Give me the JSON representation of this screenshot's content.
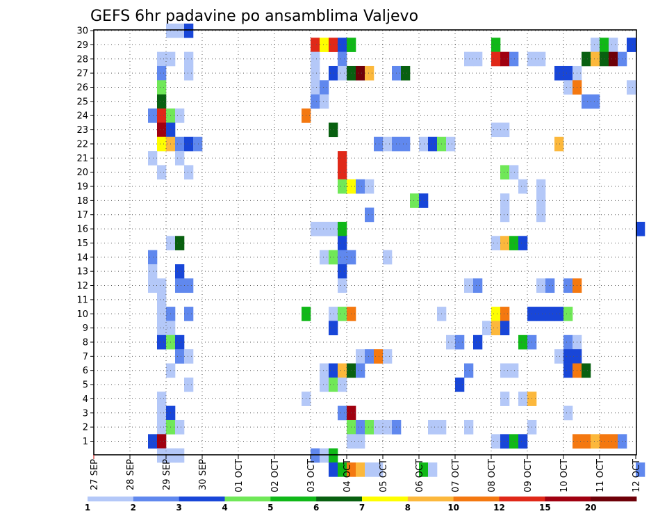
{
  "chart_data": {
    "type": "heatmap",
    "title": "GEFS 6hr padavine po ansamblima Valjevo",
    "xlabel": "",
    "ylabel": "",
    "x_tick_labels": [
      "27 SEP",
      "28 SEP",
      "29 SEP",
      "30 SEP",
      "01 OCT",
      "02 OCT",
      "03 OCT",
      "04 OCT",
      "05 OCT",
      "06 OCT",
      "07 OCT",
      "08 OCT",
      "09 OCT",
      "10 OCT",
      "11 OCT",
      "12 OCT"
    ],
    "y_tick_labels": [
      "1",
      "2",
      "3",
      "4",
      "5",
      "6",
      "7",
      "8",
      "9",
      "10",
      "11",
      "12",
      "13",
      "14",
      "15",
      "16",
      "17",
      "18",
      "19",
      "20",
      "21",
      "22",
      "23",
      "24",
      "25",
      "26",
      "27",
      "28",
      "29",
      "30"
    ],
    "grid": true,
    "colorbar": {
      "labels": [
        "1",
        "2",
        "3",
        "4",
        "5",
        "6",
        "7",
        "8",
        "10",
        "12",
        "15",
        "20"
      ],
      "colors": [
        "#b4c8f8",
        "#6088ee",
        "#1846d8",
        "#70e858",
        "#10b818",
        "#086010",
        "#fefe00",
        "#fcb83c",
        "#f47810",
        "#e02818",
        "#a00010",
        "#6e0008"
      ]
    },
    "ensemble_cells": [
      {
        "m": 30,
        "c": [
          [
            8,
            "#b4c8f8"
          ],
          [
            9,
            "#b4c8f8"
          ],
          [
            10,
            "#1846d8"
          ]
        ]
      },
      {
        "m": 29,
        "c": [
          [
            24,
            "#e02818"
          ],
          [
            25,
            "#fefe00"
          ],
          [
            26,
            "#e02818"
          ],
          [
            27,
            "#1846d8"
          ],
          [
            28,
            "#10b818"
          ],
          [
            44,
            "#10b818"
          ],
          [
            55,
            "#b4c8f8"
          ],
          [
            56,
            "#10b818"
          ],
          [
            57,
            "#b4c8f8"
          ],
          [
            59,
            "#1846d8"
          ]
        ]
      },
      {
        "m": 28,
        "c": [
          [
            7,
            "#b4c8f8"
          ],
          [
            8,
            "#b4c8f8"
          ],
          [
            10,
            "#b4c8f8"
          ],
          [
            24,
            "#b4c8f8"
          ],
          [
            27,
            "#6088ee"
          ],
          [
            41,
            "#b4c8f8"
          ],
          [
            42,
            "#b4c8f8"
          ],
          [
            44,
            "#e02818"
          ],
          [
            45,
            "#a00010"
          ],
          [
            46,
            "#6088ee"
          ],
          [
            48,
            "#b4c8f8"
          ],
          [
            49,
            "#b4c8f8"
          ],
          [
            54,
            "#086010"
          ],
          [
            55,
            "#fcb83c"
          ],
          [
            56,
            "#086010"
          ],
          [
            57,
            "#6e0008"
          ],
          [
            58,
            "#6088ee"
          ]
        ]
      },
      {
        "m": 27,
        "c": [
          [
            7,
            "#6088ee"
          ],
          [
            10,
            "#b4c8f8"
          ],
          [
            24,
            "#b4c8f8"
          ],
          [
            26,
            "#1846d8"
          ],
          [
            27,
            "#b4c8f8"
          ],
          [
            28,
            "#086010"
          ],
          [
            29,
            "#6e0008"
          ],
          [
            30,
            "#fcb83c"
          ],
          [
            33,
            "#6088ee"
          ],
          [
            34,
            "#086010"
          ],
          [
            51,
            "#1846d8"
          ],
          [
            52,
            "#1846d8"
          ],
          [
            53,
            "#b4c8f8"
          ]
        ]
      },
      {
        "m": 26,
        "c": [
          [
            7,
            "#70e858"
          ],
          [
            24,
            "#b4c8f8"
          ],
          [
            25,
            "#6088ee"
          ],
          [
            52,
            "#b4c8f8"
          ],
          [
            53,
            "#f47810"
          ],
          [
            59,
            "#b4c8f8"
          ]
        ]
      },
      {
        "m": 25,
        "c": [
          [
            7,
            "#086010"
          ],
          [
            24,
            "#6088ee"
          ],
          [
            25,
            "#b4c8f8"
          ],
          [
            54,
            "#6088ee"
          ],
          [
            55,
            "#6088ee"
          ]
        ]
      },
      {
        "m": 24,
        "c": [
          [
            6,
            "#6088ee"
          ],
          [
            7,
            "#e02818"
          ],
          [
            8,
            "#70e858"
          ],
          [
            9,
            "#b4c8f8"
          ],
          [
            23,
            "#f47810"
          ]
        ]
      },
      {
        "m": 23,
        "c": [
          [
            7,
            "#a00010"
          ],
          [
            8,
            "#1846d8"
          ],
          [
            26,
            "#086010"
          ],
          [
            44,
            "#b4c8f8"
          ],
          [
            45,
            "#b4c8f8"
          ]
        ]
      },
      {
        "m": 22,
        "c": [
          [
            7,
            "#fefe00"
          ],
          [
            8,
            "#fcb83c"
          ],
          [
            9,
            "#6088ee"
          ],
          [
            10,
            "#1846d8"
          ],
          [
            11,
            "#6088ee"
          ],
          [
            31,
            "#6088ee"
          ],
          [
            32,
            "#b4c8f8"
          ],
          [
            33,
            "#6088ee"
          ],
          [
            34,
            "#6088ee"
          ],
          [
            36,
            "#b4c8f8"
          ],
          [
            37,
            "#1846d8"
          ],
          [
            38,
            "#70e858"
          ],
          [
            39,
            "#b4c8f8"
          ],
          [
            51,
            "#fcb83c"
          ]
        ]
      },
      {
        "m": 21,
        "c": [
          [
            6,
            "#b4c8f8"
          ],
          [
            9,
            "#b4c8f8"
          ],
          [
            27,
            "#e02818"
          ]
        ]
      },
      {
        "m": 20,
        "c": [
          [
            7,
            "#b4c8f8"
          ],
          [
            10,
            "#b4c8f8"
          ],
          [
            27,
            "#e02818"
          ],
          [
            45,
            "#70e858"
          ],
          [
            46,
            "#b4c8f8"
          ]
        ]
      },
      {
        "m": 19,
        "c": [
          [
            27,
            "#70e858"
          ],
          [
            28,
            "#fefe00"
          ],
          [
            29,
            "#6088ee"
          ],
          [
            30,
            "#b4c8f8"
          ],
          [
            47,
            "#b4c8f8"
          ],
          [
            49,
            "#b4c8f8"
          ]
        ]
      },
      {
        "m": 18,
        "c": [
          [
            35,
            "#70e858"
          ],
          [
            36,
            "#1846d8"
          ],
          [
            45,
            "#b4c8f8"
          ],
          [
            49,
            "#b4c8f8"
          ]
        ]
      },
      {
        "m": 17,
        "c": [
          [
            30,
            "#6088ee"
          ],
          [
            45,
            "#b4c8f8"
          ],
          [
            49,
            "#b4c8f8"
          ]
        ]
      },
      {
        "m": 16,
        "c": [
          [
            24,
            "#b4c8f8"
          ],
          [
            25,
            "#b4c8f8"
          ],
          [
            26,
            "#b4c8f8"
          ],
          [
            27,
            "#10b818"
          ],
          [
            60,
            "#1846d8"
          ]
        ]
      },
      {
        "m": 15,
        "c": [
          [
            8,
            "#b4c8f8"
          ],
          [
            9,
            "#086010"
          ],
          [
            27,
            "#1846d8"
          ],
          [
            44,
            "#b4c8f8"
          ],
          [
            45,
            "#fcb83c"
          ],
          [
            46,
            "#10b818"
          ],
          [
            47,
            "#1846d8"
          ]
        ]
      },
      {
        "m": 14,
        "c": [
          [
            6,
            "#6088ee"
          ],
          [
            25,
            "#b4c8f8"
          ],
          [
            26,
            "#70e858"
          ],
          [
            27,
            "#6088ee"
          ],
          [
            28,
            "#6088ee"
          ],
          [
            32,
            "#b4c8f8"
          ]
        ]
      },
      {
        "m": 13,
        "c": [
          [
            6,
            "#b4c8f8"
          ],
          [
            9,
            "#1846d8"
          ],
          [
            27,
            "#1846d8"
          ]
        ]
      },
      {
        "m": 12,
        "c": [
          [
            6,
            "#b4c8f8"
          ],
          [
            7,
            "#b4c8f8"
          ],
          [
            9,
            "#6088ee"
          ],
          [
            10,
            "#6088ee"
          ],
          [
            27,
            "#b4c8f8"
          ],
          [
            41,
            "#b4c8f8"
          ],
          [
            42,
            "#6088ee"
          ],
          [
            49,
            "#b4c8f8"
          ],
          [
            50,
            "#6088ee"
          ],
          [
            52,
            "#6088ee"
          ],
          [
            53,
            "#f47810"
          ]
        ]
      },
      {
        "m": 11,
        "c": [
          [
            7,
            "#b4c8f8"
          ]
        ]
      },
      {
        "m": 10,
        "c": [
          [
            7,
            "#b4c8f8"
          ],
          [
            8,
            "#6088ee"
          ],
          [
            10,
            "#6088ee"
          ],
          [
            23,
            "#10b818"
          ],
          [
            26,
            "#b4c8f8"
          ],
          [
            27,
            "#70e858"
          ],
          [
            28,
            "#f47810"
          ],
          [
            38,
            "#b4c8f8"
          ],
          [
            44,
            "#fefe00"
          ],
          [
            45,
            "#f47810"
          ],
          [
            48,
            "#1846d8"
          ],
          [
            49,
            "#1846d8"
          ],
          [
            50,
            "#1846d8"
          ],
          [
            51,
            "#1846d8"
          ],
          [
            52,
            "#70e858"
          ]
        ]
      },
      {
        "m": 9,
        "c": [
          [
            7,
            "#b4c8f8"
          ],
          [
            8,
            "#b4c8f8"
          ],
          [
            26,
            "#1846d8"
          ],
          [
            43,
            "#b4c8f8"
          ],
          [
            44,
            "#fcb83c"
          ],
          [
            45,
            "#1846d8"
          ]
        ]
      },
      {
        "m": 8,
        "c": [
          [
            7,
            "#1846d8"
          ],
          [
            8,
            "#70e858"
          ],
          [
            9,
            "#1846d8"
          ],
          [
            39,
            "#b4c8f8"
          ],
          [
            40,
            "#6088ee"
          ],
          [
            42,
            "#1846d8"
          ],
          [
            47,
            "#10b818"
          ],
          [
            48,
            "#6088ee"
          ],
          [
            52,
            "#6088ee"
          ],
          [
            53,
            "#b4c8f8"
          ]
        ]
      },
      {
        "m": 7,
        "c": [
          [
            9,
            "#6088ee"
          ],
          [
            10,
            "#b4c8f8"
          ],
          [
            29,
            "#b4c8f8"
          ],
          [
            30,
            "#6088ee"
          ],
          [
            31,
            "#f47810"
          ],
          [
            32,
            "#b4c8f8"
          ],
          [
            51,
            "#b4c8f8"
          ],
          [
            52,
            "#1846d8"
          ],
          [
            53,
            "#1846d8"
          ]
        ]
      },
      {
        "m": 6,
        "c": [
          [
            8,
            "#b4c8f8"
          ],
          [
            25,
            "#b4c8f8"
          ],
          [
            26,
            "#1846d8"
          ],
          [
            27,
            "#fcb83c"
          ],
          [
            28,
            "#086010"
          ],
          [
            29,
            "#6088ee"
          ],
          [
            41,
            "#6088ee"
          ],
          [
            45,
            "#b4c8f8"
          ],
          [
            46,
            "#b4c8f8"
          ],
          [
            52,
            "#1846d8"
          ],
          [
            53,
            "#f47810"
          ],
          [
            54,
            "#086010"
          ]
        ]
      },
      {
        "m": 5,
        "c": [
          [
            10,
            "#b4c8f8"
          ],
          [
            25,
            "#b4c8f8"
          ],
          [
            26,
            "#70e858"
          ],
          [
            27,
            "#b4c8f8"
          ],
          [
            40,
            "#1846d8"
          ]
        ]
      },
      {
        "m": 4,
        "c": [
          [
            7,
            "#b4c8f8"
          ],
          [
            23,
            "#b4c8f8"
          ],
          [
            45,
            "#b4c8f8"
          ],
          [
            47,
            "#b4c8f8"
          ],
          [
            48,
            "#fcb83c"
          ]
        ]
      },
      {
        "m": 3,
        "c": [
          [
            7,
            "#b4c8f8"
          ],
          [
            8,
            "#1846d8"
          ],
          [
            27,
            "#6088ee"
          ],
          [
            28,
            "#a00010"
          ],
          [
            52,
            "#b4c8f8"
          ]
        ]
      },
      {
        "m": 2,
        "c": [
          [
            7,
            "#b4c8f8"
          ],
          [
            8,
            "#70e858"
          ],
          [
            9,
            "#b4c8f8"
          ],
          [
            28,
            "#70e858"
          ],
          [
            29,
            "#6088ee"
          ],
          [
            30,
            "#70e858"
          ],
          [
            31,
            "#b4c8f8"
          ],
          [
            32,
            "#b4c8f8"
          ],
          [
            33,
            "#6088ee"
          ],
          [
            37,
            "#b4c8f8"
          ],
          [
            38,
            "#b4c8f8"
          ],
          [
            41,
            "#b4c8f8"
          ],
          [
            48,
            "#b4c8f8"
          ]
        ]
      },
      {
        "m": 1,
        "c": [
          [
            6,
            "#1846d8"
          ],
          [
            7,
            "#a00010"
          ],
          [
            28,
            "#b4c8f8"
          ],
          [
            29,
            "#b4c8f8"
          ],
          [
            44,
            "#b4c8f8"
          ],
          [
            45,
            "#1846d8"
          ],
          [
            46,
            "#10b818"
          ],
          [
            47,
            "#1846d8"
          ],
          [
            53,
            "#f47810"
          ],
          [
            54,
            "#f47810"
          ],
          [
            55,
            "#fcb83c"
          ],
          [
            56,
            "#f47810"
          ],
          [
            57,
            "#f47810"
          ],
          [
            58,
            "#6088ee"
          ]
        ]
      },
      {
        "m": 0,
        "c": [
          [
            7,
            "#b4c8f8"
          ],
          [
            8,
            "#b4c8f8"
          ],
          [
            9,
            "#b4c8f8"
          ],
          [
            24,
            "#6088ee"
          ],
          [
            25,
            "#b4c8f8"
          ],
          [
            26,
            "#10b818"
          ]
        ]
      },
      {
        "m": -1,
        "c": [
          [
            26,
            "#1846d8"
          ],
          [
            27,
            "#10b818"
          ],
          [
            28,
            "#f47810"
          ],
          [
            29,
            "#fcb83c"
          ],
          [
            30,
            "#b4c8f8"
          ],
          [
            31,
            "#b4c8f8"
          ],
          [
            36,
            "#10b818"
          ],
          [
            37,
            "#b4c8f8"
          ],
          [
            60,
            "#6088ee"
          ]
        ]
      }
    ]
  }
}
